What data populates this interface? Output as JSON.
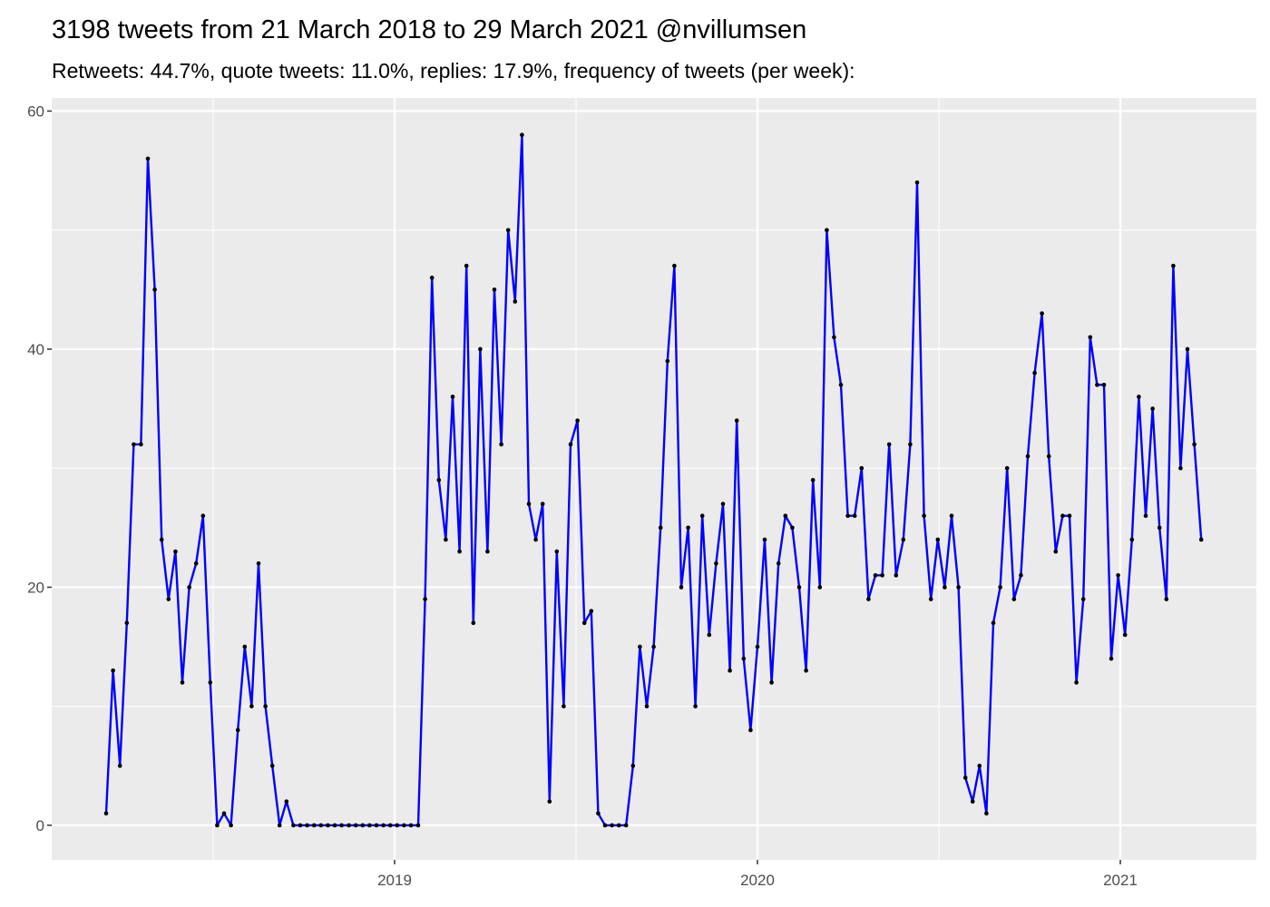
{
  "chart_data": {
    "type": "line",
    "title": "3198 tweets from 21 March 2018 to 29 March 2021 @nvillumsen",
    "subtitle": "Retweets: 44.7%, quote tweets: 11.0%, replies: 17.9%, frequency of tweets (per week):",
    "x": [
      2018.205,
      2018.224,
      2018.243,
      2018.262,
      2018.281,
      2018.301,
      2018.32,
      2018.339,
      2018.358,
      2018.377,
      2018.396,
      2018.415,
      2018.434,
      2018.453,
      2018.472,
      2018.492,
      2018.511,
      2018.53,
      2018.549,
      2018.568,
      2018.587,
      2018.606,
      2018.625,
      2018.644,
      2018.663,
      2018.683,
      2018.702,
      2018.721,
      2018.74,
      2018.759,
      2018.778,
      2018.797,
      2018.816,
      2018.835,
      2018.854,
      2018.874,
      2018.893,
      2018.912,
      2018.931,
      2018.95,
      2018.969,
      2018.988,
      2019.007,
      2019.026,
      2019.045,
      2019.065,
      2019.084,
      2019.103,
      2019.122,
      2019.141,
      2019.16,
      2019.179,
      2019.198,
      2019.217,
      2019.236,
      2019.256,
      2019.275,
      2019.294,
      2019.313,
      2019.332,
      2019.351,
      2019.37,
      2019.389,
      2019.408,
      2019.427,
      2019.447,
      2019.466,
      2019.485,
      2019.504,
      2019.523,
      2019.542,
      2019.561,
      2019.58,
      2019.599,
      2019.618,
      2019.638,
      2019.657,
      2019.676,
      2019.695,
      2019.714,
      2019.733,
      2019.752,
      2019.771,
      2019.79,
      2019.809,
      2019.829,
      2019.848,
      2019.867,
      2019.886,
      2019.905,
      2019.924,
      2019.943,
      2019.962,
      2019.981,
      2020.0,
      2020.02,
      2020.039,
      2020.058,
      2020.077,
      2020.096,
      2020.115,
      2020.134,
      2020.153,
      2020.172,
      2020.191,
      2020.211,
      2020.23,
      2020.249,
      2020.268,
      2020.287,
      2020.306,
      2020.325,
      2020.344,
      2020.363,
      2020.382,
      2020.402,
      2020.421,
      2020.44,
      2020.459,
      2020.478,
      2020.497,
      2020.516,
      2020.535,
      2020.554,
      2020.573,
      2020.593,
      2020.612,
      2020.631,
      2020.65,
      2020.669,
      2020.688,
      2020.707,
      2020.726,
      2020.745,
      2020.764,
      2020.784,
      2020.803,
      2020.822,
      2020.841,
      2020.86,
      2020.879,
      2020.898,
      2020.917,
      2020.936,
      2020.955,
      2020.975,
      2020.994,
      2021.013,
      2021.032,
      2021.051,
      2021.07,
      2021.089,
      2021.108,
      2021.127,
      2021.146,
      2021.166,
      2021.185,
      2021.204,
      2021.223
    ],
    "values": [
      1,
      13,
      5,
      17,
      32,
      32,
      56,
      45,
      24,
      19,
      23,
      12,
      20,
      22,
      26,
      12,
      0,
      1,
      0,
      8,
      15,
      10,
      22,
      10,
      5,
      0,
      2,
      0,
      0,
      0,
      0,
      0,
      0,
      0,
      0,
      0,
      0,
      0,
      0,
      0,
      0,
      0,
      0,
      0,
      0,
      0,
      19,
      46,
      29,
      24,
      36,
      23,
      47,
      17,
      40,
      23,
      45,
      32,
      50,
      44,
      58,
      27,
      24,
      27,
      2,
      23,
      10,
      32,
      34,
      17,
      18,
      1,
      0,
      0,
      0,
      0,
      5,
      15,
      10,
      15,
      25,
      39,
      47,
      20,
      25,
      10,
      26,
      16,
      22,
      27,
      13,
      34,
      14,
      8,
      15,
      24,
      12,
      22,
      26,
      25,
      20,
      13,
      29,
      20,
      50,
      41,
      37,
      26,
      26,
      30,
      19,
      21,
      21,
      32,
      21,
      24,
      32,
      54,
      26,
      19,
      24,
      20,
      26,
      20,
      4,
      2,
      5,
      1,
      17,
      20,
      30,
      19,
      21,
      31,
      38,
      43,
      31,
      23,
      26,
      26,
      12,
      19,
      41,
      37,
      37,
      14,
      21,
      16,
      24,
      36,
      26,
      35,
      25,
      19,
      47,
      30,
      40,
      32,
      24
    ],
    "color": "#0000ff",
    "point_color": "#000000",
    "xlim": [
      2018.055,
      2021.375
    ],
    "xticks": [
      2019,
      2020,
      2021
    ],
    "x_minor_ticks": [
      2018.5,
      2019.5,
      2020.5
    ],
    "ylim": [
      -2.9,
      61.1
    ],
    "yticks": [
      0,
      20,
      40,
      60
    ],
    "y_minor_ticks": [
      10,
      30,
      50
    ],
    "grid": true
  }
}
